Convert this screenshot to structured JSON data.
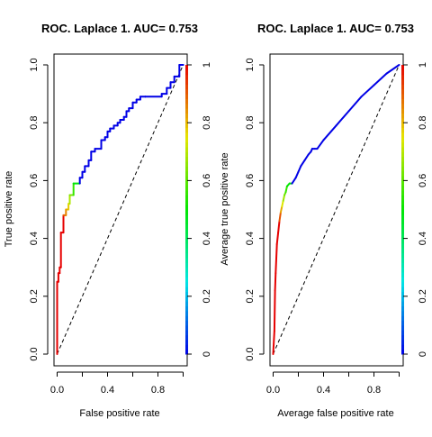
{
  "chart_data": [
    {
      "type": "line",
      "title": "ROC. Laplace 1. AUC= 0.753",
      "xlabel": "False positive rate",
      "ylabel": "True positive rate",
      "xlim": [
        0,
        1
      ],
      "ylim": [
        0,
        1
      ],
      "x_ticks": [
        "0.0",
        "0.4",
        "0.8"
      ],
      "y_ticks": [
        "0.0",
        "0.2",
        "0.4",
        "0.6",
        "0.8",
        "1.0"
      ],
      "colorbar_ticks": [
        "0",
        "0.2",
        "0.4",
        "0.6",
        "0.8",
        "1"
      ],
      "series": [
        {
          "name": "ROC curve",
          "x": [
            0.0,
            0.0,
            0.01,
            0.01,
            0.02,
            0.02,
            0.03,
            0.03,
            0.05,
            0.05,
            0.07,
            0.07,
            0.09,
            0.09,
            0.1,
            0.1,
            0.13,
            0.13,
            0.18,
            0.18,
            0.2,
            0.2,
            0.22,
            0.22,
            0.25,
            0.25,
            0.27,
            0.27,
            0.3,
            0.3,
            0.35,
            0.35,
            0.38,
            0.38,
            0.4,
            0.4,
            0.42,
            0.42,
            0.45,
            0.45,
            0.48,
            0.48,
            0.5,
            0.5,
            0.53,
            0.53,
            0.55,
            0.55,
            0.57,
            0.57,
            0.6,
            0.6,
            0.63,
            0.63,
            0.66,
            0.66,
            0.7,
            0.7,
            0.83,
            0.83,
            0.87,
            0.87,
            0.9,
            0.9,
            0.93,
            0.93,
            0.97,
            0.97,
            1.0,
            1.0
          ],
          "y": [
            0.0,
            0.25,
            0.25,
            0.28,
            0.28,
            0.3,
            0.3,
            0.42,
            0.42,
            0.48,
            0.48,
            0.5,
            0.5,
            0.52,
            0.52,
            0.55,
            0.55,
            0.59,
            0.59,
            0.61,
            0.61,
            0.63,
            0.63,
            0.65,
            0.65,
            0.67,
            0.67,
            0.7,
            0.7,
            0.71,
            0.71,
            0.74,
            0.74,
            0.75,
            0.75,
            0.77,
            0.77,
            0.78,
            0.78,
            0.79,
            0.79,
            0.8,
            0.8,
            0.81,
            0.81,
            0.82,
            0.82,
            0.84,
            0.84,
            0.85,
            0.85,
            0.87,
            0.87,
            0.88,
            0.88,
            0.89,
            0.89,
            0.89,
            0.89,
            0.9,
            0.9,
            0.92,
            0.92,
            0.94,
            0.94,
            0.96,
            0.96,
            1.0,
            1.0,
            1.0
          ]
        },
        {
          "name": "chance diagonal",
          "x": [
            0,
            1
          ],
          "y": [
            0,
            1
          ]
        }
      ],
      "colorbar_range": [
        0,
        1
      ]
    },
    {
      "type": "line",
      "title": "ROC. Laplace 1. AUC= 0.753",
      "xlabel": "Average false positive rate",
      "ylabel": "Average true positive rate",
      "xlim": [
        0,
        1
      ],
      "ylim": [
        0,
        1
      ],
      "x_ticks": [
        "0.0",
        "0.4",
        "0.8"
      ],
      "y_ticks": [
        "0.0",
        "0.2",
        "0.4",
        "0.6",
        "0.8",
        "1.0"
      ],
      "colorbar_ticks": [
        "0",
        "0.2",
        "0.4",
        "0.6",
        "0.8",
        "1"
      ],
      "series": [
        {
          "name": "Average ROC curve",
          "x": [
            0.0,
            0.01,
            0.015,
            0.02,
            0.025,
            0.03,
            0.04,
            0.05,
            0.06,
            0.07,
            0.08,
            0.09,
            0.1,
            0.11,
            0.13,
            0.15,
            0.18,
            0.2,
            0.22,
            0.25,
            0.28,
            0.3,
            0.31,
            0.33,
            0.35,
            0.4,
            0.5,
            0.6,
            0.7,
            0.8,
            0.9,
            1.0
          ],
          "y": [
            0.0,
            0.08,
            0.22,
            0.28,
            0.33,
            0.38,
            0.42,
            0.46,
            0.49,
            0.51,
            0.53,
            0.55,
            0.56,
            0.58,
            0.59,
            0.59,
            0.61,
            0.63,
            0.65,
            0.67,
            0.69,
            0.7,
            0.71,
            0.71,
            0.71,
            0.74,
            0.79,
            0.84,
            0.89,
            0.93,
            0.97,
            1.0
          ]
        },
        {
          "name": "chance diagonal",
          "x": [
            0,
            1
          ],
          "y": [
            0,
            1
          ]
        }
      ],
      "colorbar_range": [
        0,
        1
      ]
    }
  ]
}
